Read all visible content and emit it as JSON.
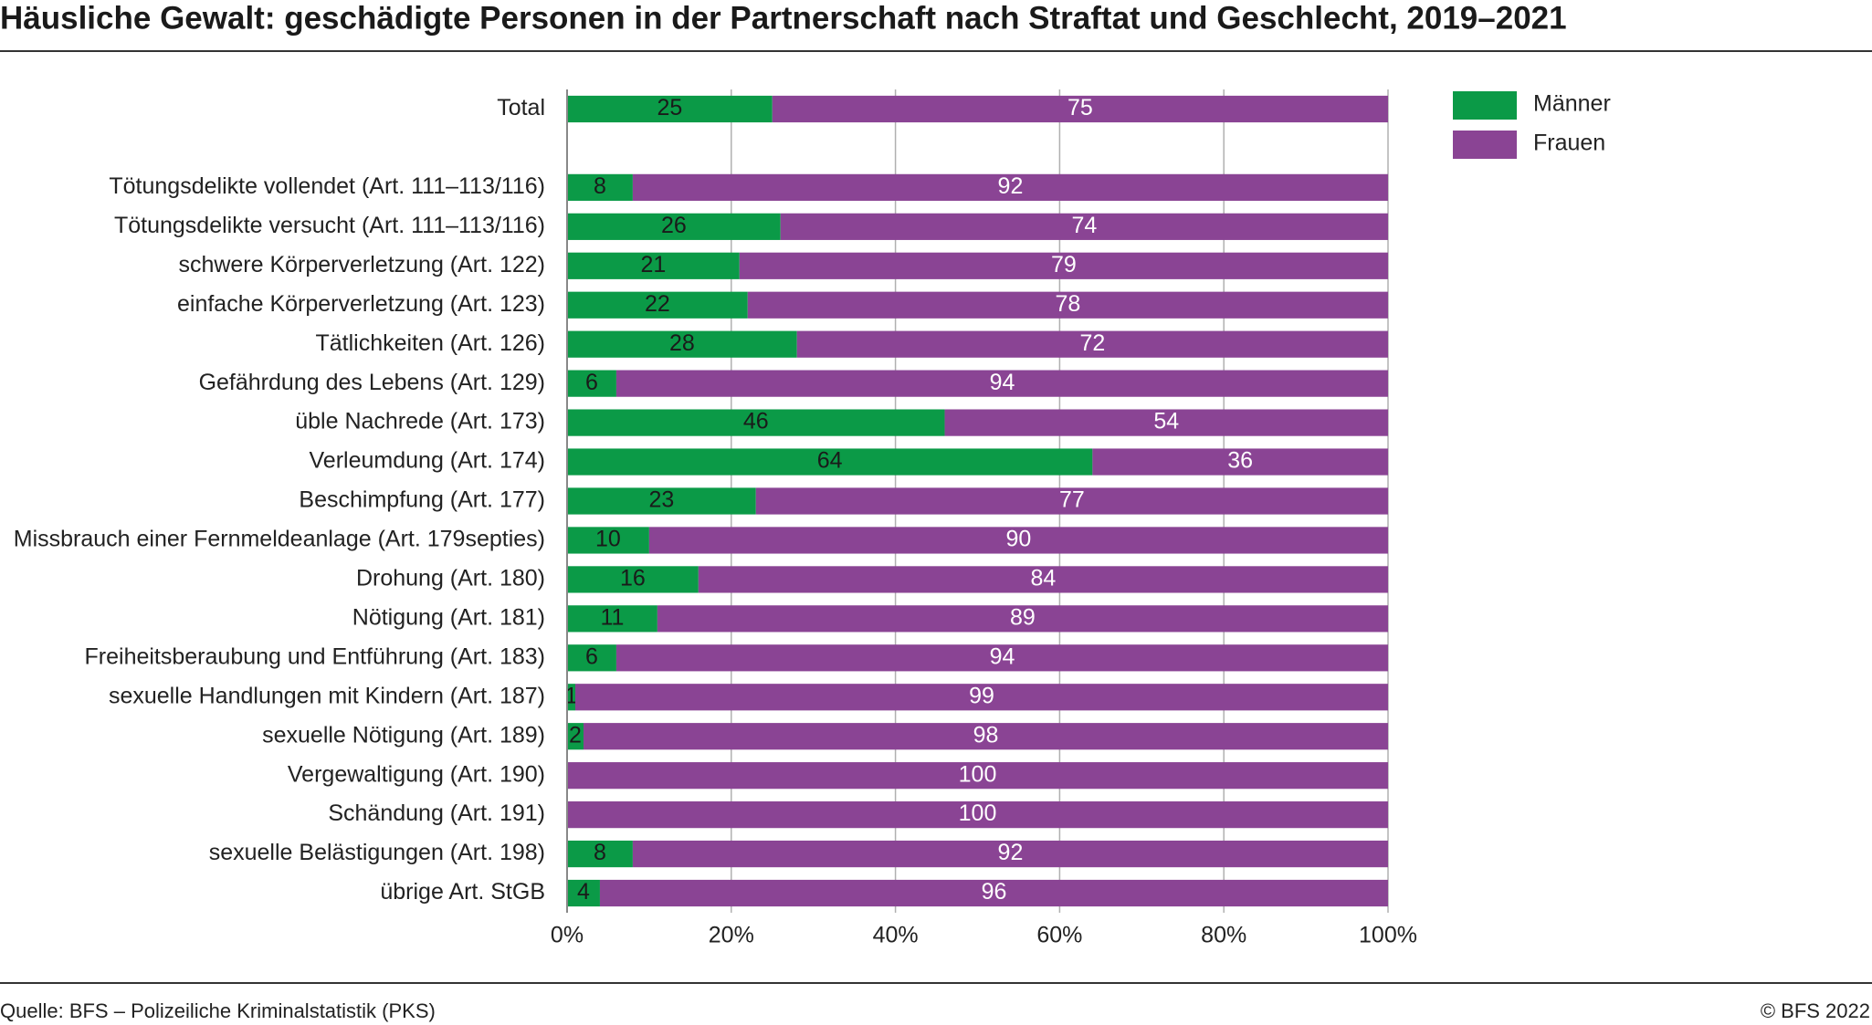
{
  "chart_data": {
    "type": "stacked-barh",
    "title": "Häusliche Gewalt: geschädigte Personen in der Partnerschaft nach Straftat und Geschlecht, 2019–2021",
    "categories": [
      "Total",
      null,
      "Tötungsdelikte vollendet (Art. 111–113/116)",
      "Tötungsdelikte versucht (Art. 111–113/116)",
      "schwere Körperverletzung (Art. 122)",
      "einfache Körperverletzung (Art. 123)",
      "Tätlichkeiten (Art. 126)",
      "Gefährdung des Lebens (Art. 129)",
      "üble Nachrede (Art. 173)",
      "Verleumdung (Art. 174)",
      "Beschimpfung (Art. 177)",
      "Missbrauch einer Fernmeldeanlage (Art. 179septies)",
      "Drohung (Art. 180)",
      "Nötigung (Art. 181)",
      "Freiheitsberaubung und Entführung (Art. 183)",
      "sexuelle Handlungen mit Kindern (Art. 187)",
      "sexuelle Nötigung (Art. 189)",
      "Vergewaltigung (Art. 190)",
      "Schändung (Art. 191)",
      "sexuelle Belästigungen (Art. 198)",
      "übrige Art. StGB"
    ],
    "series": [
      {
        "name": "Männer",
        "color": "#0b9a47",
        "values": [
          25,
          null,
          8,
          26,
          21,
          22,
          28,
          6,
          46,
          64,
          23,
          10,
          16,
          11,
          6,
          1,
          2,
          0,
          0,
          8,
          4
        ]
      },
      {
        "name": "Frauen",
        "color": "#8a4494",
        "values": [
          75,
          null,
          92,
          74,
          79,
          78,
          72,
          94,
          54,
          36,
          77,
          90,
          84,
          89,
          94,
          99,
          98,
          100,
          100,
          92,
          96
        ]
      }
    ],
    "xlim": [
      0,
      100
    ],
    "xticks": [
      {
        "value": 0,
        "label": "0%"
      },
      {
        "value": 20,
        "label": "20%"
      },
      {
        "value": 40,
        "label": "40%"
      },
      {
        "value": 60,
        "label": "60%"
      },
      {
        "value": 80,
        "label": "80%"
      },
      {
        "value": 100,
        "label": "100%"
      }
    ],
    "grid": true,
    "legend": "right",
    "source": "Quelle: BFS – Polizeiliche Kriminalstatistik (PKS)",
    "credit": "© BFS 2022"
  }
}
